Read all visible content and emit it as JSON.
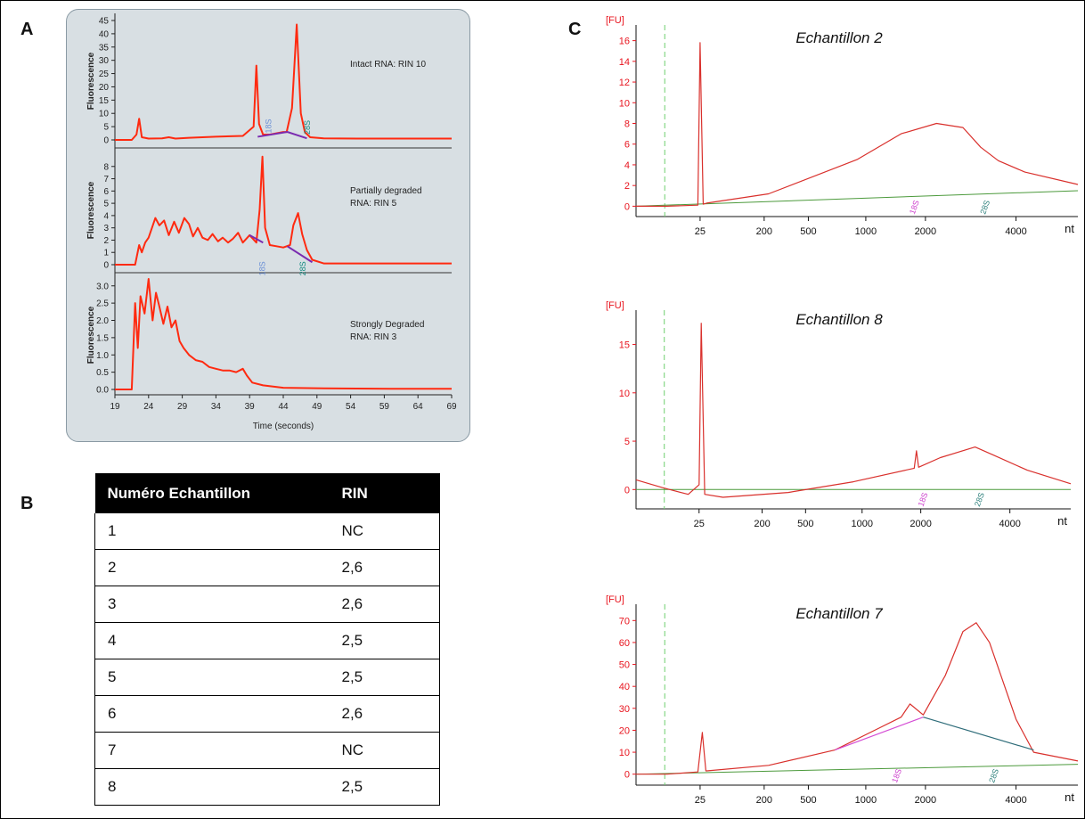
{
  "labels": {
    "a": "A",
    "b": "B",
    "c": "C"
  },
  "colors": {
    "trace": "#ff2a10",
    "traceC": "#d9302c",
    "panelBg": "#d8dfe3",
    "axisRed": "#e8141e",
    "base": "#4c9a3c",
    "marker18": "#cc3dcc",
    "marker28": "#2b7f7a"
  },
  "panel_a": {
    "xlabel": "Time (seconds)",
    "ylabel": "Fluorescence",
    "x_ticks": [
      "19",
      "24",
      "29",
      "34",
      "39",
      "44",
      "49",
      "54",
      "59",
      "64",
      "69"
    ],
    "marker_18s": "18S",
    "marker_28s": "28S"
  },
  "table": {
    "headers": [
      "Numéro Echantillon",
      "RIN"
    ],
    "rows": [
      [
        "1",
        "NC"
      ],
      [
        "2",
        "2,6"
      ],
      [
        "3",
        "2,6"
      ],
      [
        "4",
        "2,5"
      ],
      [
        "5",
        "2,5"
      ],
      [
        "6",
        "2,6"
      ],
      [
        "7",
        "NC"
      ],
      [
        "8",
        "2,5"
      ]
    ]
  },
  "panel_c_common": {
    "unit": "[FU]",
    "xunit": "nt",
    "x_ticks": [
      "25",
      "200",
      "500",
      "1000",
      "2000",
      "4000"
    ],
    "marker_18s": "18S",
    "marker_28s": "28S"
  },
  "chart_data": [
    {
      "type": "line",
      "title": "Intact RNA: RIN 10",
      "xlabel": "Time (seconds)",
      "ylabel": "Fluorescence",
      "xlim": [
        19,
        69
      ],
      "ylim": [
        0,
        45
      ],
      "y_ticks": [
        0,
        5,
        10,
        15,
        20,
        25,
        30,
        35,
        40,
        45
      ],
      "x": [
        19,
        21.5,
        22.2,
        22.6,
        23,
        24,
        26,
        27,
        28,
        30,
        34,
        38,
        39.6,
        40,
        40.4,
        41,
        42,
        44,
        44.5,
        45.3,
        46,
        46.6,
        47.2,
        48,
        50,
        55,
        60,
        69
      ],
      "y": [
        0,
        0,
        2,
        8,
        1,
        0.5,
        0.6,
        1,
        0.5,
        0.8,
        1.2,
        1.5,
        5,
        28,
        6,
        2,
        2,
        3,
        3,
        12,
        43.5,
        10,
        3,
        1,
        0.6,
        0.5,
        0.5,
        0.5
      ],
      "annotations": [
        "18S",
        "28S"
      ]
    },
    {
      "type": "line",
      "title": "Partially degraded RNA: RIN 5",
      "xlabel": "Time (seconds)",
      "ylabel": "Fluorescence",
      "xlim": [
        19,
        69
      ],
      "ylim": [
        0,
        9
      ],
      "y_ticks": [
        0,
        1,
        2,
        3,
        4,
        5,
        6,
        7,
        8
      ],
      "x": [
        19,
        22,
        22.6,
        23,
        23.5,
        24,
        25,
        25.6,
        26.3,
        27,
        27.8,
        28.5,
        29.3,
        30,
        30.6,
        31.3,
        32,
        32.8,
        33.5,
        34.3,
        35,
        35.8,
        36.5,
        37.3,
        38,
        39,
        40,
        40.5,
        40.9,
        41.3,
        42,
        43,
        44,
        45,
        45.5,
        46.2,
        46.8,
        47.5,
        48.3,
        50,
        55,
        60,
        69
      ],
      "y": [
        0,
        0,
        1.6,
        1,
        1.8,
        2.2,
        3.8,
        3.2,
        3.6,
        2.4,
        3.5,
        2.6,
        3.8,
        3.3,
        2.3,
        3.0,
        2.2,
        2.0,
        2.5,
        1.9,
        2.2,
        1.8,
        2.1,
        2.6,
        1.8,
        2.4,
        1.8,
        4.5,
        8.8,
        3,
        1.6,
        1.5,
        1.4,
        1.6,
        3.2,
        4.2,
        2.5,
        1.2,
        0.4,
        0.1,
        0.1,
        0.1,
        0.1
      ],
      "annotations": [
        "18S",
        "28S"
      ]
    },
    {
      "type": "line",
      "title": "Strongly Degraded RNA: RIN 3",
      "xlabel": "Time (seconds)",
      "ylabel": "Fluorescence",
      "xlim": [
        19,
        69
      ],
      "ylim": [
        0,
        3.2
      ],
      "y_ticks": [
        0.0,
        0.5,
        1.0,
        1.5,
        2.0,
        2.5,
        3.0
      ],
      "x": [
        19,
        21.5,
        22,
        22.4,
        22.8,
        23.4,
        24,
        24.6,
        25.1,
        25.6,
        26.2,
        26.8,
        27.4,
        28,
        28.6,
        29.2,
        30,
        31,
        32,
        33,
        34,
        35,
        36,
        37,
        38,
        38.6,
        39.4,
        41,
        44,
        50,
        60,
        69
      ],
      "y": [
        0,
        0,
        2.5,
        1.2,
        2.7,
        2.2,
        3.2,
        2.0,
        2.8,
        2.4,
        1.9,
        2.4,
        1.8,
        2.0,
        1.4,
        1.2,
        1.0,
        0.85,
        0.8,
        0.65,
        0.6,
        0.55,
        0.55,
        0.5,
        0.6,
        0.4,
        0.2,
        0.12,
        0.05,
        0.03,
        0.02,
        0.02
      ],
      "annotations": []
    },
    {
      "type": "line",
      "title": "Echantillon 2",
      "ylabel": "[FU]",
      "xlabel": "nt",
      "ylim": [
        -1,
        17
      ],
      "y_ticks": [
        0,
        2,
        4,
        6,
        8,
        10,
        12,
        14,
        16
      ],
      "peak_x_fraction": [
        0.0,
        0.07,
        0.14,
        0.145,
        0.152,
        0.16,
        0.3,
        0.5,
        0.6,
        0.68,
        0.74,
        0.78,
        0.82,
        0.88,
        1.0
      ],
      "y": [
        0,
        0,
        0.1,
        15.8,
        0.2,
        0.3,
        1.2,
        4.5,
        7.0,
        8.0,
        7.6,
        5.7,
        4.4,
        3.3,
        2.1
      ],
      "annotations": [
        "18S",
        "28S"
      ]
    },
    {
      "type": "line",
      "title": "Echantillon 8",
      "ylabel": "[FU]",
      "xlabel": "nt",
      "ylim": [
        -2,
        18
      ],
      "y_ticks": [
        0,
        5,
        10,
        15
      ],
      "peak_x_fraction": [
        0.0,
        0.06,
        0.12,
        0.145,
        0.15,
        0.158,
        0.2,
        0.35,
        0.5,
        0.64,
        0.645,
        0.65,
        0.7,
        0.78,
        0.82,
        0.9,
        1.0
      ],
      "y": [
        1.0,
        0.2,
        -0.5,
        0.5,
        17.2,
        -0.5,
        -0.8,
        -0.3,
        0.8,
        2.2,
        4.0,
        2.3,
        3.3,
        4.4,
        3.6,
        2.0,
        0.6
      ],
      "annotations": [
        "18S",
        "28S"
      ]
    },
    {
      "type": "line",
      "title": "Echantillon 7",
      "ylabel": "[FU]",
      "xlabel": "nt",
      "ylim": [
        -5,
        75
      ],
      "y_ticks": [
        0,
        10,
        20,
        30,
        40,
        50,
        60,
        70
      ],
      "peak_x_fraction": [
        0.0,
        0.07,
        0.14,
        0.15,
        0.158,
        0.16,
        0.3,
        0.45,
        0.55,
        0.6,
        0.62,
        0.65,
        0.7,
        0.74,
        0.77,
        0.8,
        0.86,
        0.9,
        0.95,
        1.0
      ],
      "y": [
        0,
        0,
        1,
        19,
        1.5,
        1.5,
        4,
        11,
        21,
        26,
        32,
        27,
        45,
        65,
        69,
        60,
        25,
        10,
        8,
        6
      ],
      "annotations": [
        "18S",
        "28S"
      ]
    }
  ]
}
